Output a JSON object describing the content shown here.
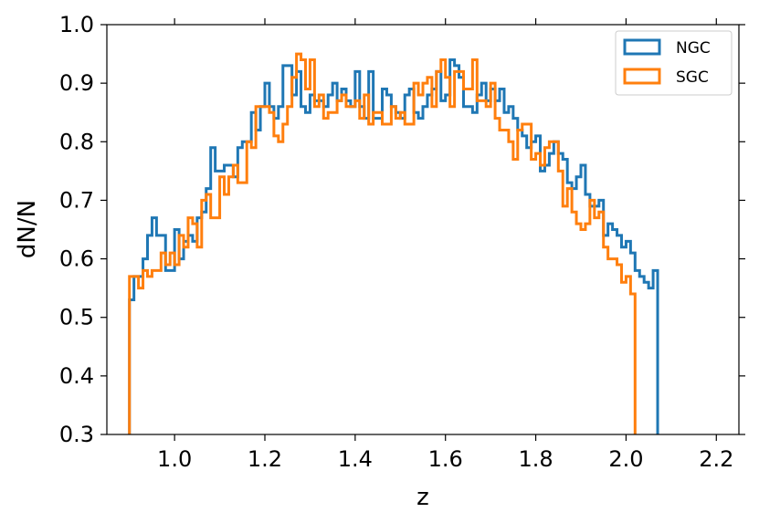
{
  "chart_data": {
    "type": "line",
    "xlabel": "z",
    "ylabel": "dN/N",
    "xlim": [
      0.85,
      2.25
    ],
    "ylim": [
      0.3,
      1.0
    ],
    "xticks": [
      "1.0",
      "1.2",
      "1.4",
      "1.6",
      "1.8",
      "2.0",
      "2.2"
    ],
    "yticks": [
      "0.3",
      "0.4",
      "0.5",
      "0.6",
      "0.7",
      "0.8",
      "0.9",
      "1.0"
    ],
    "legend_position": "top-right",
    "bin_start": 0.9,
    "bin_width": 0.01,
    "series": [
      {
        "name": "NGC",
        "color": "#1f77b4",
        "values": [
          0.53,
          0.57,
          0.57,
          0.6,
          0.64,
          0.67,
          0.64,
          0.64,
          0.58,
          0.58,
          0.65,
          0.6,
          0.63,
          0.64,
          0.63,
          0.67,
          0.68,
          0.72,
          0.79,
          0.75,
          0.75,
          0.76,
          0.76,
          0.74,
          0.79,
          0.8,
          0.8,
          0.85,
          0.82,
          0.86,
          0.9,
          0.86,
          0.84,
          0.86,
          0.93,
          0.93,
          0.88,
          0.92,
          0.86,
          0.85,
          0.88,
          0.87,
          0.87,
          0.86,
          0.88,
          0.9,
          0.87,
          0.89,
          0.87,
          0.86,
          0.92,
          0.86,
          0.84,
          0.92,
          0.84,
          0.84,
          0.89,
          0.88,
          0.86,
          0.85,
          0.84,
          0.88,
          0.89,
          0.85,
          0.84,
          0.86,
          0.88,
          0.89,
          0.92,
          0.87,
          0.88,
          0.94,
          0.93,
          0.91,
          0.86,
          0.86,
          0.85,
          0.88,
          0.9,
          0.87,
          0.89,
          0.87,
          0.89,
          0.85,
          0.86,
          0.84,
          0.82,
          0.81,
          0.79,
          0.8,
          0.81,
          0.75,
          0.76,
          0.78,
          0.8,
          0.78,
          0.77,
          0.73,
          0.72,
          0.74,
          0.76,
          0.71,
          0.69,
          0.69,
          0.7,
          0.64,
          0.66,
          0.65,
          0.64,
          0.62,
          0.63,
          0.61,
          0.58,
          0.57,
          0.56,
          0.55,
          0.58
        ]
      },
      {
        "name": "SGC",
        "color": "#ff7f0e",
        "values": [
          0.57,
          0.57,
          0.55,
          0.58,
          0.57,
          0.58,
          0.58,
          0.61,
          0.59,
          0.61,
          0.59,
          0.64,
          0.62,
          0.67,
          0.66,
          0.62,
          0.7,
          0.71,
          0.67,
          0.67,
          0.74,
          0.71,
          0.74,
          0.76,
          0.73,
          0.73,
          0.8,
          0.79,
          0.86,
          0.86,
          0.86,
          0.85,
          0.81,
          0.8,
          0.83,
          0.86,
          0.91,
          0.95,
          0.94,
          0.89,
          0.94,
          0.86,
          0.88,
          0.84,
          0.85,
          0.85,
          0.87,
          0.88,
          0.86,
          0.86,
          0.87,
          0.84,
          0.88,
          0.83,
          0.85,
          0.85,
          0.83,
          0.83,
          0.86,
          0.84,
          0.85,
          0.83,
          0.83,
          0.9,
          0.88,
          0.9,
          0.91,
          0.86,
          0.92,
          0.94,
          0.91,
          0.86,
          0.92,
          0.92,
          0.89,
          0.89,
          0.94,
          0.87,
          0.87,
          0.86,
          0.9,
          0.84,
          0.82,
          0.82,
          0.8,
          0.77,
          0.82,
          0.83,
          0.83,
          0.77,
          0.78,
          0.76,
          0.79,
          0.8,
          0.8,
          0.75,
          0.69,
          0.72,
          0.68,
          0.66,
          0.65,
          0.66,
          0.7,
          0.67,
          0.68,
          0.62,
          0.6,
          0.6,
          0.59,
          0.56,
          0.57,
          0.54
        ]
      }
    ]
  }
}
